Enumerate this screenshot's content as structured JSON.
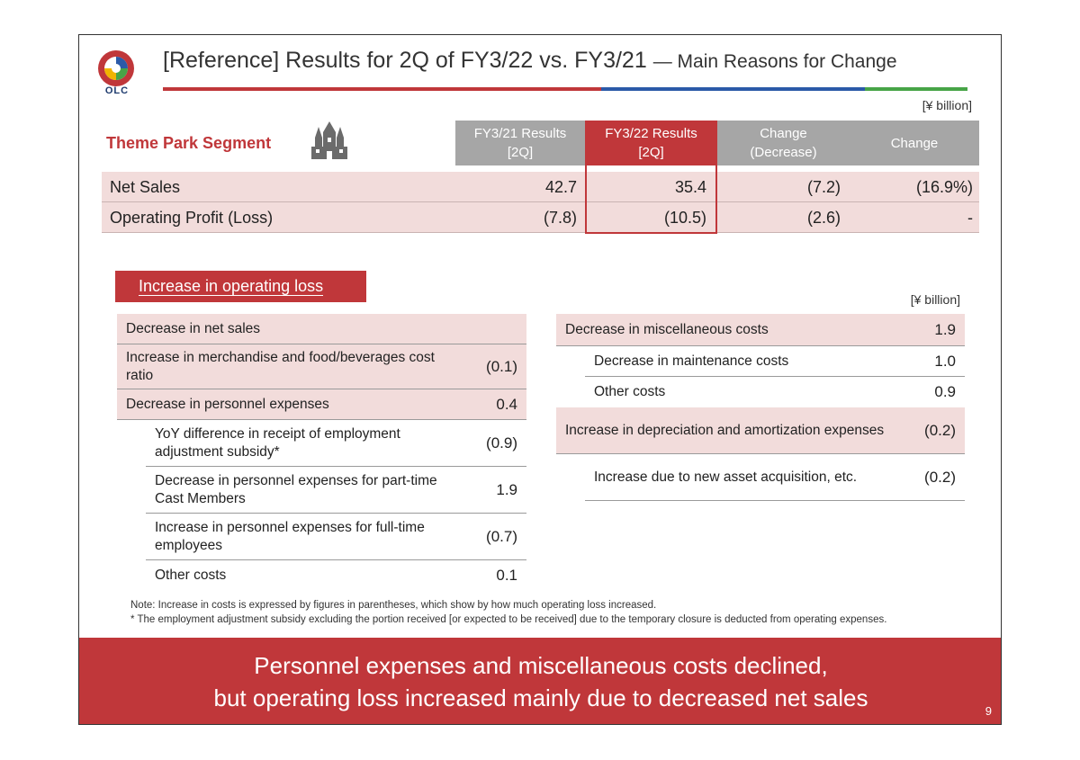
{
  "header": {
    "logo_text": "OLC",
    "title_main": "[Reference] Results for 2Q of FY3/22 vs. FY3/21",
    "title_sub": "— Main Reasons for Change",
    "bar_colors": [
      "#c0373a",
      "#2b5aa8",
      "#47a447"
    ]
  },
  "top_table": {
    "unit": "[¥ billion]",
    "segment_label": "Theme Park Segment",
    "segment_icon": "castle-icon",
    "columns": [
      "FY3/21 Results\n[2Q]",
      "FY3/22 Results\n[2Q]",
      "Change\n(Decrease)",
      "Change"
    ],
    "rows": [
      {
        "label": "Net Sales",
        "values": [
          "42.7",
          "35.4",
          "(7.2)",
          "(16.9%)"
        ]
      },
      {
        "label": "Operating Profit (Loss)",
        "values": [
          "(7.8)",
          "(10.5)",
          "(2.6)",
          "-"
        ]
      }
    ]
  },
  "section": {
    "tag": "Increase in operating loss",
    "unit": "[¥ billion]"
  },
  "left_table": [
    {
      "label": "Decrease in net sales",
      "value": "",
      "pink": true,
      "indent": false
    },
    {
      "label": "Increase in merchandise and food/beverages cost ratio",
      "value": "(0.1)",
      "pink": true,
      "indent": false
    },
    {
      "label": "Decrease in personnel expenses",
      "value": "0.4",
      "pink": true,
      "indent": false
    },
    {
      "label": "YoY difference in receipt of employment adjustment subsidy*",
      "value": "(0.9)",
      "pink": false,
      "indent": true
    },
    {
      "label": "Decrease in personnel expenses for part-time Cast Members",
      "value": "1.9",
      "pink": false,
      "indent": true
    },
    {
      "label": "Increase in personnel expenses for full-time employees",
      "value": "(0.7)",
      "pink": false,
      "indent": true
    },
    {
      "label": "Other costs",
      "value": "0.1",
      "pink": false,
      "indent": true
    }
  ],
  "right_table": [
    {
      "label": "Decrease in miscellaneous costs",
      "value": "1.9",
      "pink": true,
      "indent": false
    },
    {
      "label": "Decrease in maintenance costs",
      "value": "1.0",
      "pink": false,
      "indent": true
    },
    {
      "label": "Other costs",
      "value": "0.9",
      "pink": false,
      "indent": true
    },
    {
      "label": "Increase in depreciation and amortization expenses",
      "value": "(0.2)",
      "pink": true,
      "indent": false
    },
    {
      "label": "Increase due to new asset acquisition, etc.",
      "value": "(0.2)",
      "pink": false,
      "indent": true
    }
  ],
  "notes": [
    "Note: Increase in costs is expressed by figures in parentheses, which show by how much operating loss increased.",
    "* The employment adjustment subsidy excluding the portion received [or expected to be received] due to the temporary closure is deducted from operating expenses."
  ],
  "banner": {
    "line1": "Personnel expenses and miscellaneous costs declined,",
    "line2": "but operating loss increased mainly due to decreased net sales"
  },
  "page_number": "9",
  "colors": {
    "accent": "#c0373a",
    "header_gray": "#a6a6a6",
    "row_pink": "#f2dcdb"
  }
}
